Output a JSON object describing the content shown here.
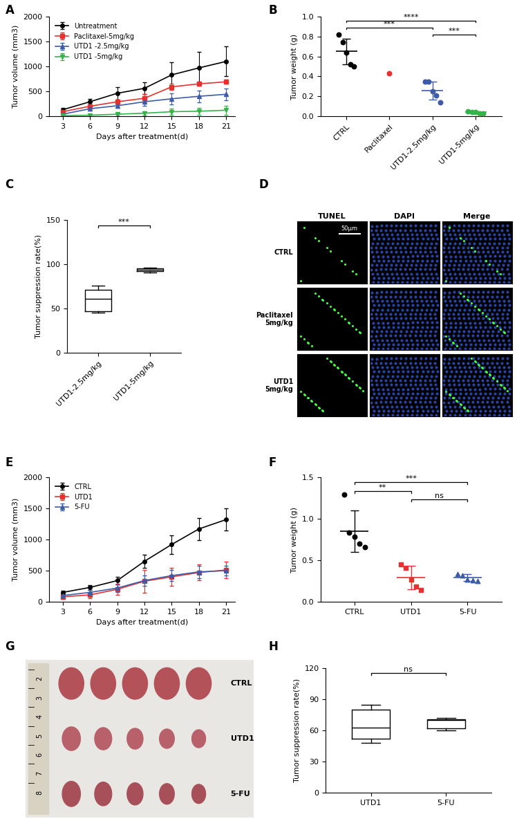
{
  "chart_data": [
    {
      "panel": "A",
      "type": "line",
      "x": [
        3,
        6,
        9,
        12,
        15,
        18,
        21
      ],
      "xlim": [
        1.5,
        22
      ],
      "xticks": [
        3,
        6,
        9,
        12,
        15,
        18,
        21
      ],
      "ylim": [
        0,
        2000
      ],
      "yticks": [
        0,
        500,
        1000,
        1500,
        2000
      ],
      "x_label": "Days after treatment(d)",
      "y_label": "Tumor volume (mm3)",
      "legend": "upper left",
      "series": [
        {
          "name": "Untreatment",
          "color": "#000000",
          "marker": "circle",
          "values": [
            130,
            290,
            460,
            560,
            830,
            970,
            1100
          ],
          "errors": [
            30,
            60,
            120,
            120,
            250,
            320,
            300
          ]
        },
        {
          "name": "Paclitaxel-5mg/kg",
          "color": "#e8312f",
          "marker": "square",
          "values": [
            90,
            200,
            290,
            360,
            590,
            650,
            690
          ],
          "errors": [
            20,
            40,
            50,
            80,
            60,
            40,
            40
          ]
        },
        {
          "name": "UTD1 -2.5mg/kg",
          "color": "#3d5ca8",
          "marker": "triangle_up",
          "values": [
            40,
            150,
            210,
            290,
            350,
            400,
            440
          ],
          "errors": [
            20,
            40,
            50,
            80,
            110,
            120,
            120
          ]
        },
        {
          "name": "UTD1 -5mg/kg",
          "color": "#33b34a",
          "marker": "triangle_down",
          "values": [
            10,
            20,
            40,
            60,
            90,
            100,
            120
          ],
          "errors": [
            10,
            20,
            30,
            40,
            60,
            70,
            90
          ]
        }
      ]
    },
    {
      "panel": "B",
      "type": "dot",
      "categories": [
        "CTRL",
        "Paclitaxel",
        "UTD1-2.5mg/kg",
        "UTD1-5mg/kg"
      ],
      "ylim": [
        0.0,
        1.0
      ],
      "yticks": [
        0.0,
        0.2,
        0.4,
        0.6,
        0.8,
        1.0
      ],
      "y_label": "Tumor weight (g)",
      "groups": [
        {
          "color": "#000000",
          "marker": "circle",
          "points": [
            0.82,
            0.74,
            0.64,
            0.52,
            0.5
          ],
          "mean": 0.65,
          "sd": 0.13
        },
        {
          "color": "#e8312f",
          "marker": "circle",
          "points": [
            0.43
          ]
        },
        {
          "color": "#3d5ca8",
          "marker": "circle",
          "points": [
            0.35,
            0.35,
            0.25,
            0.21,
            0.14
          ],
          "mean": 0.26,
          "sd": 0.09
        },
        {
          "color": "#33b34a",
          "marker": "circle",
          "points": [
            0.05,
            0.04,
            0.04,
            0.03,
            0.03
          ],
          "mean": 0.04,
          "sd": 0.01
        }
      ],
      "significance": [
        {
          "from": "CTRL",
          "to": "UTD1-5mg/kg",
          "label": "****"
        },
        {
          "from": "CTRL",
          "to": "UTD1-2.5mg/kg",
          "label": "***"
        },
        {
          "from": "UTD1-2.5mg/kg",
          "to": "UTD1-5mg/kg",
          "label": "***"
        }
      ]
    },
    {
      "panel": "C",
      "type": "box",
      "categories": [
        "UTD1-2.5mg/kg",
        "UTD1-5mg/kg"
      ],
      "color": "#000000",
      "ylim": [
        0,
        150
      ],
      "yticks": [
        0,
        50,
        100,
        150
      ],
      "y_label": "Tumor suppression rate(%)",
      "boxes": [
        {
          "whislo": 45,
          "q1": 47,
          "med": 61,
          "q3": 71,
          "whishi": 76
        },
        {
          "whislo": 91,
          "q1": 92.5,
          "med": 94,
          "q3": 95,
          "whishi": 96
        }
      ],
      "significance": [
        {
          "from": "UTD1-2.5mg/kg",
          "to": "UTD1-5mg/kg",
          "label": "***"
        }
      ]
    },
    {
      "panel": "D",
      "type": "image",
      "columns": [
        "TUNEL",
        "DAPI",
        "Merge"
      ],
      "rows": [
        "CTRL",
        "Paclitaxel\n5mg/kg",
        "UTD1\n5mg/kg"
      ],
      "scale_bar": "50μm"
    },
    {
      "panel": "E",
      "type": "line",
      "x": [
        3,
        6,
        9,
        12,
        15,
        18,
        21
      ],
      "xlim": [
        1.5,
        22
      ],
      "xticks": [
        3,
        6,
        9,
        12,
        15,
        18,
        21
      ],
      "ylim": [
        0,
        2000
      ],
      "yticks": [
        0,
        500,
        1000,
        1500,
        2000
      ],
      "x_label": "Days after treatment(d)",
      "y_label": "Tumor volume (mm3)",
      "legend": "upper left",
      "series": [
        {
          "name": "CTRL",
          "color": "#000000",
          "marker": "circle",
          "values": [
            150,
            230,
            340,
            650,
            920,
            1170,
            1320
          ],
          "errors": [
            30,
            40,
            60,
            110,
            150,
            180,
            180
          ]
        },
        {
          "name": "UTD1",
          "color": "#e8312f",
          "marker": "square",
          "values": [
            80,
            110,
            200,
            330,
            400,
            470,
            510
          ],
          "errors": [
            30,
            50,
            90,
            180,
            140,
            130,
            130
          ]
        },
        {
          "name": "5-FU",
          "color": "#3d5ca8",
          "marker": "triangle_up",
          "values": [
            100,
            150,
            220,
            340,
            420,
            480,
            500
          ],
          "errors": [
            30,
            40,
            60,
            80,
            90,
            100,
            80
          ]
        }
      ]
    },
    {
      "panel": "F",
      "type": "dot",
      "categories": [
        "CTRL",
        "UTD1",
        "5-FU"
      ],
      "ylim": [
        0.0,
        1.5
      ],
      "yticks": [
        0.0,
        0.5,
        1.0,
        1.5
      ],
      "y_label": "Tumor weight (g)",
      "groups": [
        {
          "color": "#000000",
          "marker": "circle",
          "points": [
            1.29,
            0.83,
            0.78,
            0.7,
            0.66
          ],
          "mean": 0.85,
          "sd": 0.25
        },
        {
          "color": "#e8312f",
          "marker": "square",
          "points": [
            0.45,
            0.41,
            0.27,
            0.18,
            0.14
          ],
          "mean": 0.29,
          "sd": 0.14
        },
        {
          "color": "#3d5ca8",
          "marker": "triangle_up",
          "points": [
            0.33,
            0.32,
            0.27,
            0.26,
            0.25
          ],
          "mean": 0.29,
          "sd": 0.04
        }
      ],
      "significance": [
        {
          "from": "CTRL",
          "to": "5-FU",
          "label": "***"
        },
        {
          "from": "CTRL",
          "to": "UTD1",
          "label": "**"
        },
        {
          "from": "UTD1",
          "to": "5-FU",
          "label": "ns"
        }
      ]
    },
    {
      "panel": "G",
      "type": "image",
      "rows": [
        "CTRL",
        "UTD1",
        "5-FU"
      ],
      "items_per_row": 5,
      "ruler": [
        2,
        3,
        4,
        5,
        6,
        7,
        8
      ]
    },
    {
      "panel": "H",
      "type": "box",
      "categories": [
        "UTD1",
        "5-FU"
      ],
      "color": "#000000",
      "ylim": [
        0,
        120
      ],
      "yticks": [
        0,
        30,
        60,
        90,
        120
      ],
      "y_label": "Tumor suppression rate(%)",
      "boxes": [
        {
          "whislo": 48,
          "q1": 52,
          "med": 63,
          "q3": 80,
          "whishi": 85
        },
        {
          "whislo": 60,
          "q1": 62,
          "med": 70,
          "q3": 71,
          "whishi": 72
        }
      ],
      "significance": [
        {
          "from": "UTD1",
          "to": "5-FU",
          "label": "ns"
        }
      ]
    }
  ]
}
